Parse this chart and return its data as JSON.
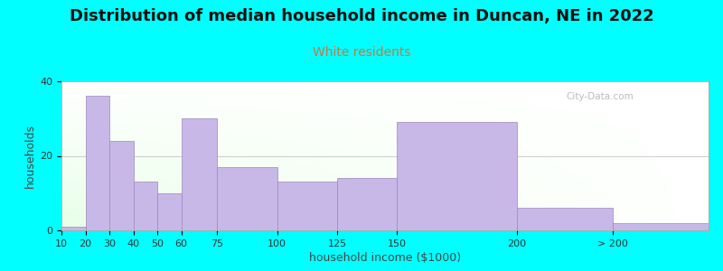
{
  "title": "Distribution of median household income in Duncan, NE in 2022",
  "subtitle": "White residents",
  "xlabel": "household income ($1000)",
  "ylabel": "households",
  "background_outer": "#00FFFF",
  "bar_color": "#C8B8E8",
  "bar_edge_color": "#9988BB",
  "watermark": "City-Data.com",
  "title_fontsize": 13,
  "subtitle_fontsize": 10,
  "axis_label_fontsize": 9,
  "tick_fontsize": 8,
  "subtitle_color": "#CC7744",
  "bin_left": [
    10,
    20,
    30,
    40,
    50,
    60,
    75,
    100,
    125,
    150,
    200,
    240
  ],
  "bin_right": [
    20,
    30,
    40,
    50,
    60,
    75,
    100,
    125,
    150,
    200,
    240,
    280
  ],
  "bin_labels": [
    "10",
    "20",
    "30",
    "40",
    "50",
    "60",
    "75",
    "100",
    "125",
    "150",
    "200",
    "> 200"
  ],
  "values": [
    1,
    36,
    24,
    13,
    10,
    30,
    17,
    13,
    14,
    29,
    6,
    2
  ],
  "ylim": [
    0,
    40
  ],
  "yticks": [
    0,
    20,
    40
  ],
  "xlim_left": 10,
  "xlim_right": 280
}
